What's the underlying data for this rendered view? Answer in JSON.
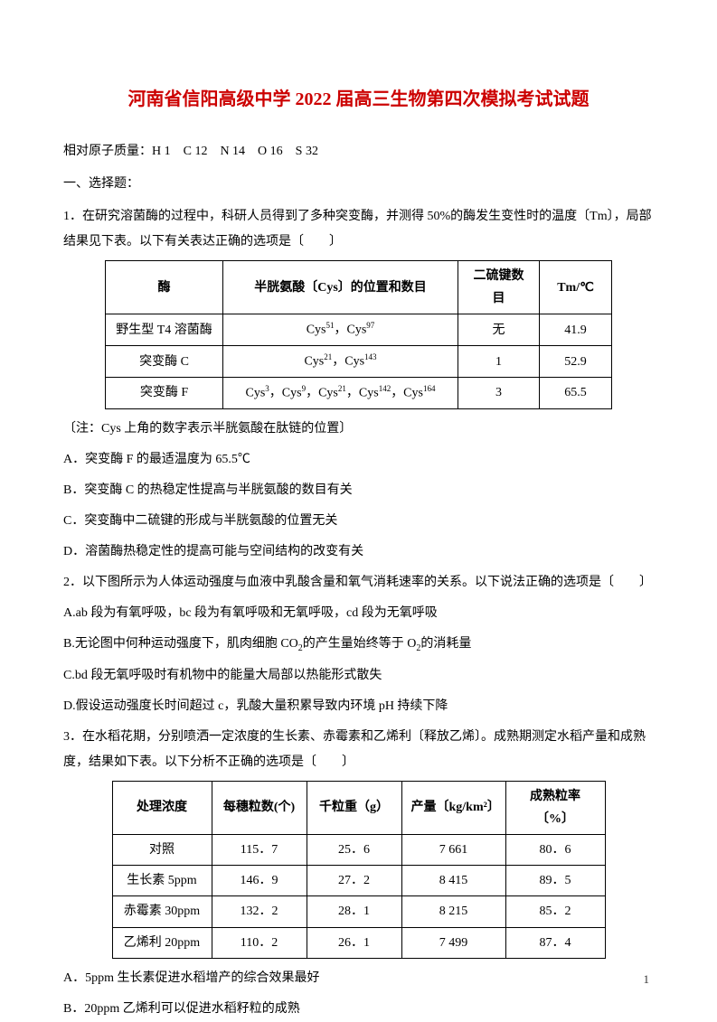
{
  "title": "河南省信阳高级中学 2022 届高三生物第四次模拟考试试题",
  "atomic_mass": "相对原子质量：H 1　C 12　N 14　O 16　S 32",
  "section1": "一、选择题：",
  "q1_text": "1．在研究溶菌酶的过程中，科研人员得到了多种突变酶，并测得 50%的酶发生变性时的温度〔Tm〕，局部结果见下表。以下有关表达正确的选项是〔　　〕",
  "table1": {
    "headers": [
      "酶",
      "半胱氨酸〔Cys〕的位置和数目",
      "二硫键数目",
      "Tm/℃"
    ],
    "rows": [
      [
        "野生型 T4 溶菌酶",
        "Cys⁵¹，Cys⁹⁷",
        "无",
        "41.9"
      ],
      [
        "突变酶 C",
        "Cys²¹，Cys¹⁴³",
        "1",
        "52.9"
      ],
      [
        "突变酶 F",
        "Cys³，Cys⁹，Cys²¹，Cys¹⁴²，Cys¹⁶⁴",
        "3",
        "65.5"
      ]
    ]
  },
  "note1": "〔注：Cys 上角的数字表示半胱氨酸在肽链的位置〕",
  "q1_opts": {
    "A": "A．突变酶 F 的最适温度为 65.5℃",
    "B": "B．突变酶 C 的热稳定性提高与半胱氨酸的数目有关",
    "C": "C．突变酶中二硫键的形成与半胱氨酸的位置无关",
    "D": "D．溶菌酶热稳定性的提高可能与空间结构的改变有关"
  },
  "q2_text": "2．以下图所示为人体运动强度与血液中乳酸含量和氧气消耗速率的关系。以下说法正确的选项是〔　　〕",
  "q2_opts": {
    "A": "A.ab 段为有氧呼吸，bc 段为有氧呼吸和无氧呼吸，cd 段为无氧呼吸",
    "B_pre": "B.无论图中何种运动强度下，肌肉细胞 CO",
    "B_mid": "的产生量始终等于 O",
    "B_end": "的消耗量",
    "C": "C.bd 段无氧呼吸时有机物中的能量大局部以热能形式散失",
    "D": "D.假设运动强度长时间超过 c，乳酸大量积累导致内环境 pH 持续下降"
  },
  "q3_text": "3．在水稻花期，分别喷洒一定浓度的生长素、赤霉素和乙烯利〔释放乙烯〕。成熟期测定水稻产量和成熟度，结果如下表。以下分析不正确的选项是〔　　〕",
  "table2": {
    "headers": [
      "处理浓度",
      "每穗粒数(个)",
      "千粒重（g）",
      "产量〔kg/km²〕",
      "成熟粒率〔%〕"
    ],
    "rows": [
      [
        "对照",
        "115．7",
        "25．6",
        "7 661",
        "80．6"
      ],
      [
        "生长素 5ppm",
        "146．9",
        "27．2",
        "8 415",
        "89．5"
      ],
      [
        "赤霉素 30ppm",
        "132．2",
        "28．1",
        "8 215",
        "85．2"
      ],
      [
        "乙烯利 20ppm",
        "110．2",
        "26．1",
        "7 499",
        "87．4"
      ]
    ]
  },
  "q3_opts": {
    "A": "A．5ppm 生长素促进水稻增产的综合效果最好",
    "B": "B．20ppm 乙烯利可以促进水稻籽粒的成熟"
  },
  "page_num": "1"
}
